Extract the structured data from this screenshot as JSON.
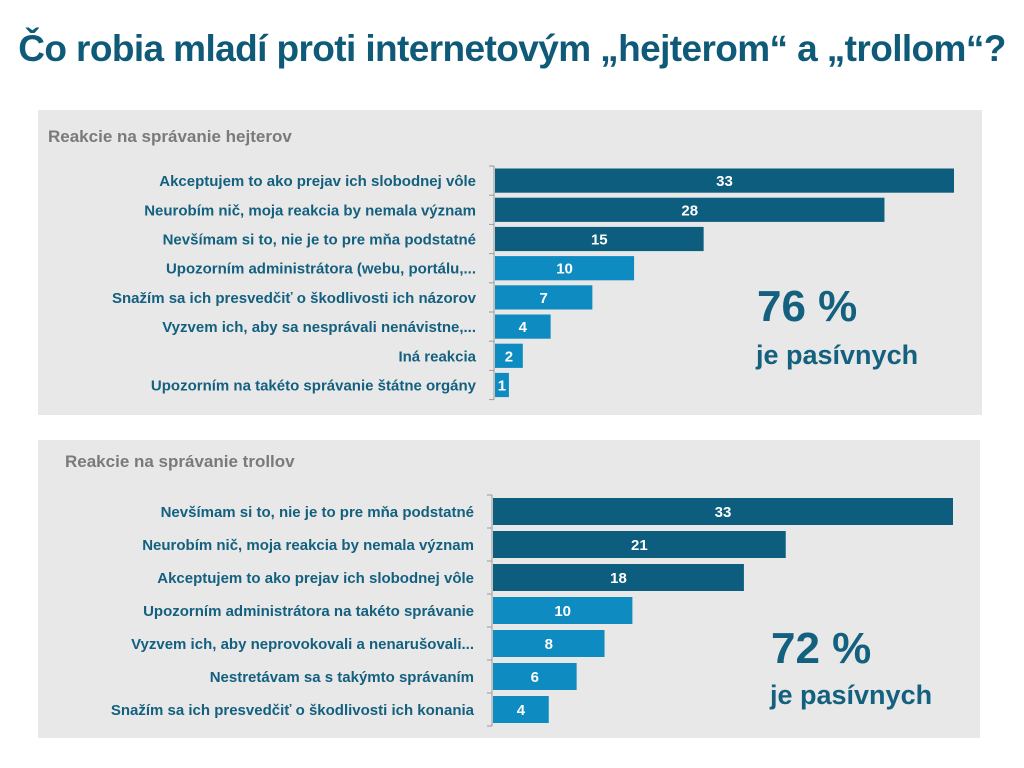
{
  "title": "Čo robia mladí proti internetovým „hejterom“ a „trollom“?",
  "colors": {
    "dark": "#0d5d7f",
    "light": "#0e8bc0",
    "text": "#13607f",
    "panel": "#e8e8e8"
  },
  "chart_data": [
    {
      "type": "bar",
      "orientation": "horizontal",
      "title": "Reakcie na správanie hejterov",
      "categories": [
        "Akceptujem to ako prejav ich slobodnej vôle",
        "Neurobím nič, moja reakcia by nemala význam",
        "Nevšímam si to, nie je to pre mňa podstatné",
        "Upozorním administrátora (webu, portálu,...",
        "Snažím sa ich presvedčiť  o škodlivosti ich názorov",
        "Vyzvem ich, aby sa nesprávali nenávistne,...",
        "Iná reakcia",
        "Upozorním na takéto správanie štátne orgány"
      ],
      "values": [
        33,
        28,
        15,
        10,
        7,
        4,
        2,
        1
      ],
      "passive": [
        true,
        true,
        true,
        false,
        false,
        false,
        false,
        false
      ],
      "xlim": [
        0,
        33
      ],
      "grid": false,
      "annotation": {
        "value": "76 %",
        "text": "je pasívnych"
      }
    },
    {
      "type": "bar",
      "orientation": "horizontal",
      "title": "Reakcie na správanie trollov",
      "categories": [
        "Nevšímam si to, nie je to pre mňa podstatné",
        "Neurobím nič, moja reakcia by nemala význam",
        "Akceptujem to ako prejav ich slobodnej vôle",
        "Upozorním administrátora na takéto správanie",
        "Vyzvem ich, aby neprovokovali a nenarušovali...",
        "Nestretávam sa s takýmto správaním",
        "Snažím sa ich presvedčiť o škodlivosti ich konania"
      ],
      "values": [
        33,
        21,
        18,
        10,
        8,
        6,
        4
      ],
      "passive": [
        true,
        true,
        true,
        false,
        false,
        false,
        false
      ],
      "xlim": [
        0,
        33
      ],
      "grid": false,
      "annotation": {
        "value": "72 %",
        "text": "je pasívnych"
      }
    }
  ]
}
